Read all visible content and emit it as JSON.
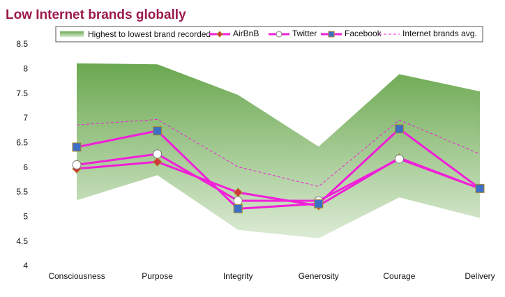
{
  "chart_data": {
    "type": "line",
    "title": "Low Internet brands globally",
    "categories": [
      "Consciousness",
      "Purpose",
      "Integrity",
      "Generosity",
      "Courage",
      "Delivery"
    ],
    "band": {
      "name": "Highest to lowest brand recorded",
      "color_top": "#6aa84f",
      "color_bottom": "#dcebd5",
      "upper": [
        8.12,
        8.1,
        7.48,
        6.43,
        7.9,
        7.55
      ],
      "lower": [
        5.34,
        5.85,
        4.74,
        4.57,
        5.4,
        4.98
      ]
    },
    "series": [
      {
        "name": "AirBnB",
        "color": "#f01fd8",
        "marker": "diamond",
        "marker_color": "#d0393b",
        "values": [
          5.98,
          6.12,
          5.5,
          5.23,
          6.2,
          5.58
        ]
      },
      {
        "name": "Twitter",
        "color": "#f01fd8",
        "marker": "circle",
        "marker_color": "#ffffff",
        "values": [
          6.06,
          6.28,
          5.33,
          5.33,
          6.18,
          5.58
        ]
      },
      {
        "name": "Facebook",
        "color": "#f01fd8",
        "marker": "square",
        "marker_color": "#3d6fc4",
        "values": [
          6.42,
          6.75,
          5.17,
          5.27,
          6.79,
          5.58
        ]
      },
      {
        "name": "Internet brands avg.",
        "color": "#f01fd8",
        "dashed": true,
        "values": [
          6.87,
          6.98,
          6.02,
          5.62,
          6.97,
          6.28
        ]
      }
    ],
    "ylim": [
      4,
      8.5
    ],
    "yticks": [
      4,
      4.5,
      5,
      5.5,
      6,
      6.5,
      7,
      7.5,
      8,
      8.5
    ],
    "grid": false
  }
}
